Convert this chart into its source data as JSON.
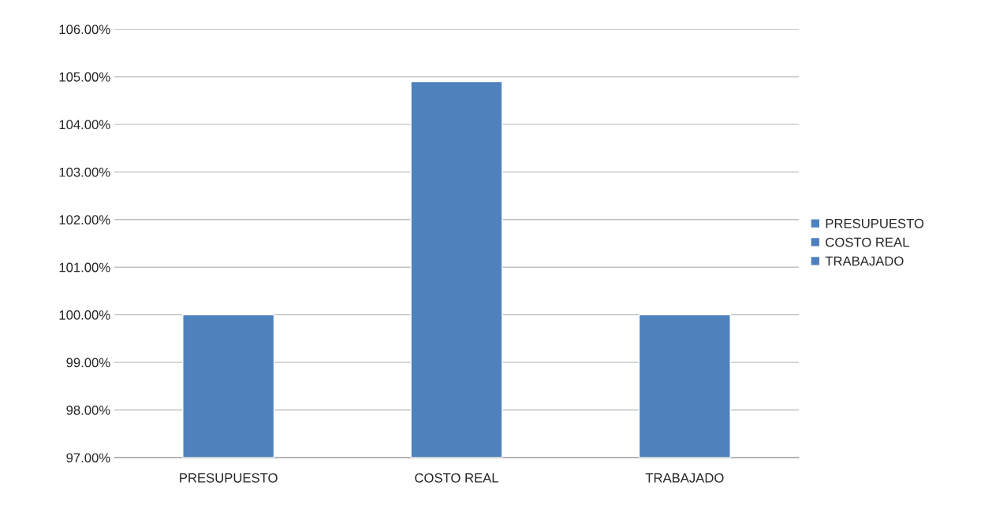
{
  "chart_data": {
    "type": "bar",
    "categories": [
      "PRESUPUESTO",
      "COSTO REAL",
      "TRABAJADO"
    ],
    "stacked": true,
    "series": [
      {
        "name": "PRESUPUESTO",
        "color": "#4f81bd",
        "values": [
          100.0,
          null,
          null
        ]
      },
      {
        "name": "COSTO REAL",
        "color": "#4f81bd",
        "values": [
          null,
          104.9,
          null
        ]
      },
      {
        "name": "TRABAJADO",
        "color": "#4f81bd",
        "values": [
          null,
          null,
          100.0
        ]
      }
    ],
    "ylim": [
      97,
      106
    ],
    "yticks": [
      {
        "value": 97,
        "label": "97.00%"
      },
      {
        "value": 98,
        "label": "98.00%"
      },
      {
        "value": 99,
        "label": "99.00%"
      },
      {
        "value": 100,
        "label": "100.00%"
      },
      {
        "value": 101,
        "label": "101.00%"
      },
      {
        "value": 102,
        "label": "102.00%"
      },
      {
        "value": 103,
        "label": "103.00%"
      },
      {
        "value": 104,
        "label": "104.00%"
      },
      {
        "value": 105,
        "label": "105.00%"
      },
      {
        "value": 106,
        "label": "106.00%"
      }
    ],
    "grid": "y",
    "legend": "right"
  }
}
